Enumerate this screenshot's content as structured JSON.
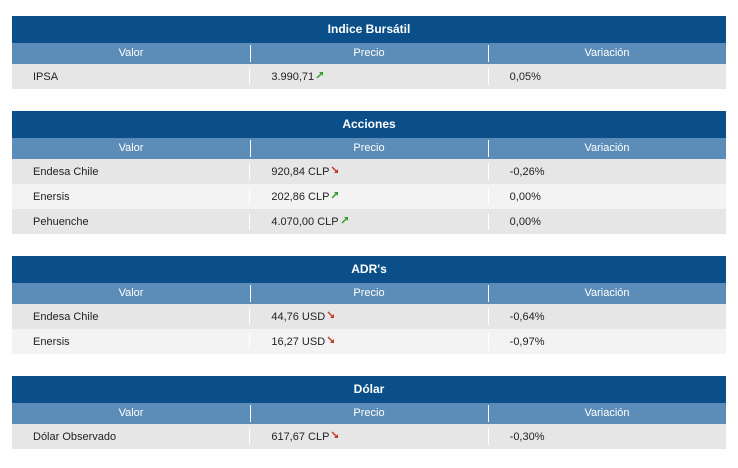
{
  "columns": {
    "valor": "Valor",
    "precio": "Precio",
    "variacion": "Variación"
  },
  "colors": {
    "up": "#2a9d2a",
    "down": "#c0392b",
    "title_bg": "#0b4f8a",
    "header_bg": "#5b8db8"
  },
  "sections": [
    {
      "title": "Indice Bursátil",
      "rows": [
        {
          "valor": "IPSA",
          "precio": "3.990,71",
          "trend": "up",
          "variacion": "0,05%"
        }
      ]
    },
    {
      "title": "Acciones",
      "rows": [
        {
          "valor": "Endesa Chile",
          "precio": "920,84 CLP",
          "trend": "down",
          "variacion": "-0,26%"
        },
        {
          "valor": "Enersis",
          "precio": "202,86 CLP",
          "trend": "up",
          "variacion": "0,00%"
        },
        {
          "valor": "Pehuenche",
          "precio": "4.070,00 CLP",
          "trend": "up",
          "variacion": "0,00%"
        }
      ]
    },
    {
      "title": "ADR's",
      "rows": [
        {
          "valor": "Endesa Chile",
          "precio": "44,76 USD",
          "trend": "down",
          "variacion": "-0,64%"
        },
        {
          "valor": "Enersis",
          "precio": "16,27 USD",
          "trend": "down",
          "variacion": "-0,97%"
        }
      ]
    },
    {
      "title": "Dólar",
      "rows": [
        {
          "valor": "Dólar Observado",
          "precio": "617,67 CLP",
          "trend": "down",
          "variacion": "-0,30%"
        }
      ]
    }
  ]
}
